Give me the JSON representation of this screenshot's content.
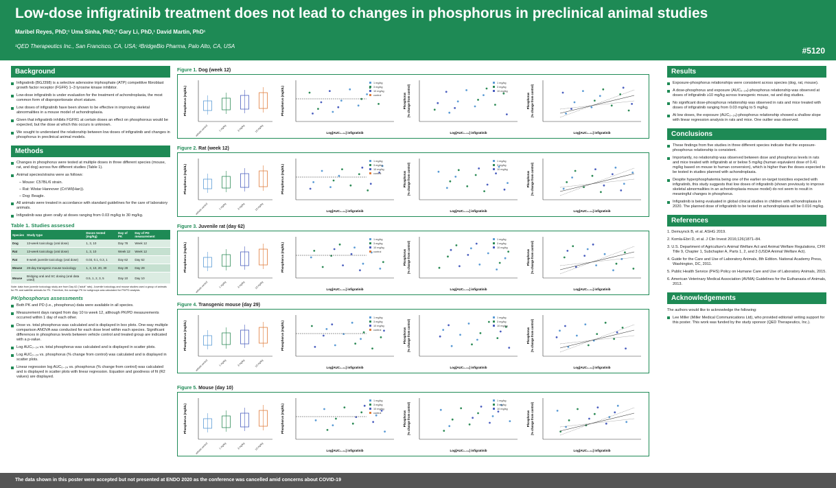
{
  "header": {
    "title": "Low-dose infigratinib treatment does not lead to changes in phosphorus in preclinical animal studies",
    "authors": "Maribel Reyes, PhD;¹ Uma Sinha, PhD;² Gary Li, PhD,¹ David Martin, PhD¹",
    "affiliations": "¹QED Therapeutics Inc., San Francisco, CA, USA; ²BridgeBio Pharma, Palo Alto, CA, USA",
    "poster_number": "#5120"
  },
  "footer": "The data shown in this poster were accepted but not presented at ENDO 2020 as the conference was cancelled amid concerns about COVID-19",
  "background": {
    "heading": "Background",
    "bullets": [
      "Infigratinib (BGJ398) is a selective adenosine triphosphate (ATP) competitive fibroblast growth factor receptor (FGFR) 1–3 tyrosine kinase inhibitor.",
      "Low-dose infigratinib is under evaluation for the treatment of achondroplasia, the most common form of disproportionate short stature.",
      "Low doses of infigratinib have been shown to be effective in improving skeletal abnormalities in a mouse model of achondroplasia.",
      "Given that infigratinib inhibits FGFR1 at certain doses an effect on phosphorous would be expected, but the dose at which this occurs is unknown.",
      "We sought to understand the relationship between low doses of infigratinib and changes in phosphorus in preclinical animal models."
    ]
  },
  "methods": {
    "heading": "Methods",
    "bullet1": "Changes in phosphorus were tested at multiple doses in three different species (mouse, rat, and dog) across five different studies (Table 1).",
    "bullet2": "Animal species/strains were as follows:",
    "sub1": "– Mouse: C57BL/6 strain.",
    "sub2": "– Rat: Wistar Hannover (Crl:WI(Han)).",
    "sub3": "– Dog: Beagle.",
    "bullet3": "All animals were treated in accordance with standard guidelines for the care of laboratory animals.",
    "bullet4": "Infigratinib was given orally at doses ranging from 0.03 mg/kg to 30 mg/kg."
  },
  "table": {
    "title": "Table 1. Studies assessed",
    "headers": [
      "Species",
      "Study type",
      "Doses tested (mg/kg)",
      "Day of PK",
      "Day of PD measurement"
    ],
    "rows": [
      [
        "Dog",
        "13-week toxicology (oral dose)",
        "1, 3, 10",
        "Day 78",
        "Week 12"
      ],
      [
        "Rat",
        "13-week toxicology (oral dose)",
        "1, 3, 10",
        "Week 12",
        "Week 12"
      ],
      [
        "Rat",
        "8-week juvenile toxicology (oral dose)",
        "0.03, 0.1, 0.3, 1",
        "Day 62",
        "Day 62"
      ],
      [
        "Mouse",
        "28-day transgenic mouse toxicology",
        "1, 3, 10, 20, 30",
        "Day 28",
        "Day 29"
      ],
      [
        "Mouse",
        "Bridging oral and SC dosing (oral data used)",
        "0.5, 1, 2, 3, 5",
        "Day 10",
        "Day 10"
      ]
    ],
    "note": "Note: data from juvenile toxicology study are from Day 62 (\"adult\" rats). Juvenile toxicology and mouse studies used a group of animals for PK and satellite animals for PK. Therefore, the average PK for subgroups was calculated for PK/PD analysis."
  },
  "pkpd": {
    "heading": "PK/phosphorus assessments",
    "bullets": [
      "Both PK and PD (i.e., phosphorus) data were available in all species.",
      "Measurement days ranged from day 10 to week 12, although PK/PD measurements occurred within 1 day of each other.",
      "Dose vs. total phosphorus was calculated and is displayed in box plots. One-way multiple comparison ANOVA was conducted for each dose level within each species. Significant differences in phosphorus levels between vehicle control and treated group are indicated with a p-value.",
      "Log AUC₀₋₂₄ vs. total phosphorus was calculated and is displayed in scatter plots.",
      "Log AUC₀₋₂₄ vs. phosphorus (% change from control) was calculated and is displayed in scatter plots.",
      "Linear regression log AUC₀₋₂₄ vs. phosphorus (% change from control) was calculated and is displayed in scatter plots with linear regression. Equation and goodness of fit (R2 values) are displayed."
    ]
  },
  "figures": [
    {
      "label": "Figure 1.",
      "caption": " Dog (week 12)"
    },
    {
      "label": "Figure 2.",
      "caption": " Rat (week 12)"
    },
    {
      "label": "Figure 3.",
      "caption": " Juvenile rat (day 62)"
    },
    {
      "label": "Figure 4.",
      "caption": " Transgenic mouse (day 29)"
    },
    {
      "label": "Figure 5.",
      "caption": " Mouse (day 10)"
    }
  ],
  "axis_labels": {
    "phos_box": "Phosphorus (mg/dL)",
    "phos_scatter": "Phosphorus (mg/dL)",
    "pct_change_1": "Phosphorus",
    "pct_change_2": "(% change from control)",
    "xlabel": "Log[AUC₀₋₂₄] infigratinib"
  },
  "chart_data": [
    {
      "type": "box",
      "title": "",
      "categories": [
        "vehicle control",
        "1 mg/kg",
        "3 mg/kg",
        "10 mg/kg"
      ],
      "legend": [],
      "ylim": [
        0,
        8
      ]
    },
    {
      "type": "scatter",
      "legend": [
        "1 mg/kg",
        "3 mg/kg",
        "10 mg/kg",
        "control"
      ],
      "xlim": [
        0,
        3
      ],
      "ylim": [
        0,
        10
      ]
    },
    {
      "type": "scatter",
      "legend": [
        "1 mg/kg",
        "3 mg/kg",
        "10 mg/kg"
      ],
      "xlim": [
        0.5,
        3.0
      ],
      "ylim": [
        -30,
        80
      ]
    },
    {
      "type": "scatter",
      "legend": [],
      "xlim": [
        0.5,
        3.0
      ],
      "ylim": [
        -30,
        80
      ]
    }
  ],
  "results": {
    "heading": "Results",
    "bullets": [
      "Exposure-phosphorus relationships were consistent across species (dog, rat, mouse).",
      "A dose-phosphorus and exposure (AUC₀₋₂₄)-phosphorus relationship was observed at doses of infigratinib ≥10 mg/kg across transgenic mouse, rat and dog studies.",
      "No significant dose-phosphorus relationship was observed in rats and mice treated with doses of infigratinib ranging from 0.03 mg/kg to 5 mg/kg.",
      "At low doses, the exposure (AUC₀₋₂₄)-phosphorus relationship showed a shallow slope with linear regression analysis in rats and mice. One outlier was observed."
    ]
  },
  "conclusions": {
    "heading": "Conclusions",
    "bullets": [
      "These findings from five studies in three different species indicate that the exposure-phosphorus relationship is consistent.",
      "Importantly, no relationship was observed between dose and phosphorus levels in rats and mice treated with infigratinib at or below 5 mg/kg (human equivalent dose of 0.41 mg/kg based on mouse to human conversion), which is higher than the doses expected to be tested in studies planned with achondroplasia.",
      "Despite hyperphosphatemia being one of the earlier on-target toxicities expected with infigratinib, this study suggests that low doses of infigratinib (shown previously to improve skeletal abnormalities in an achondroplasia mouse model) do not seem to result in meaningful changes in phosphorus.",
      "Infigratinib is being evaluated in global clinical studies in children with achondroplasia in 2020. The planned dose of infigratinib to be tested in achondroplasia will be 0.016 mg/kg."
    ]
  },
  "references": {
    "heading": "References",
    "items": [
      "1. Demuynck B, et al. ASHG 2019.",
      "2. Komla-Ebri D, et al. J Clin Invest 2016;126(1871–84.",
      "3. U.S. Department of Agriculture's Animal Welfare Act and Animal Welfare Regulations, CFR Title 9, Chapter 1, Subchapter A, Parts 1, 2, and 3 (USDA Animal Welfare Act).",
      "4. Guide for the Care and Use of Laboratory Animals, 8th Edition. National Academy Press, Washington, DC, 2011.",
      "5. Public Health Service (PHS) Policy on Humane Care and Use of Laboratory Animals, 2015.",
      "6. American Veterinary Medical Association (AVMA) Guidelines for the Euthanasia of Animals, 2013."
    ]
  },
  "acknowledgements": {
    "heading": "Acknowledgements",
    "intro": "The authors would like to acknowledge the following:",
    "bullet": "Lee Miller (Miller Medical Communications Ltd), who provided editorial/ writing support for this poster. This work was funded by the study sponsor (QED Therapeutics, Inc.)."
  },
  "colors": {
    "brand_green": "#1e8a55",
    "footer_gray": "#555555"
  }
}
